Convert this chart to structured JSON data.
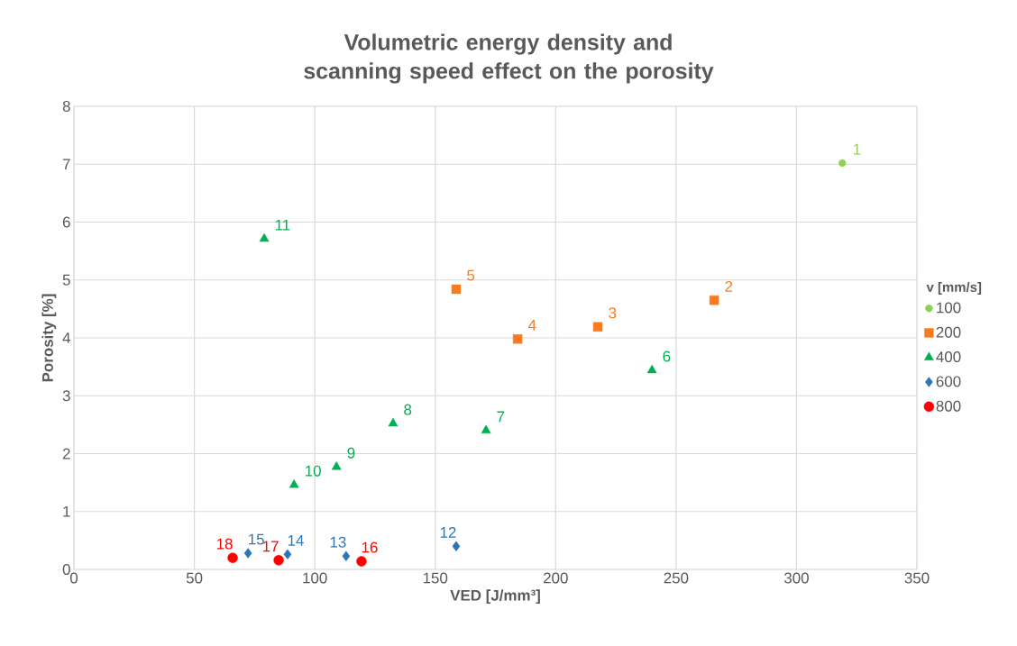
{
  "chart_data": {
    "type": "scatter",
    "title": "Volumetric energy density and scanning speed effect on the porosity",
    "xlabel": "VED [J/mm³]",
    "ylabel": "Porosity [%]",
    "legend_title": "v [mm/s]",
    "legend": "right",
    "grid": true,
    "xlim": [
      0,
      350
    ],
    "xticks": [
      0,
      50,
      100,
      150,
      200,
      250,
      300,
      350
    ],
    "ylim": [
      0,
      8
    ],
    "yticks": [
      0,
      1,
      2,
      3,
      4,
      5,
      6,
      7,
      8
    ],
    "series": [
      {
        "name": "100",
        "color": "#92d050",
        "marker": "circle",
        "x": [
          319
        ],
        "values": [
          7.02
        ]
      },
      {
        "name": "200",
        "color": "#f97a1f",
        "marker": "square",
        "x": [
          265.8,
          217.5,
          184.2,
          158.7
        ],
        "values": [
          4.65,
          4.19,
          3.98,
          4.84
        ]
      },
      {
        "name": "400",
        "color": "#00b050",
        "marker": "triangle",
        "x": [
          240,
          171.1,
          132.5,
          109,
          91.4,
          79
        ],
        "values": [
          3.44,
          2.4,
          2.52,
          1.77,
          1.46,
          5.71
        ]
      },
      {
        "name": "600",
        "color": "#2e75b6",
        "marker": "diamond",
        "x": [
          158.7,
          113,
          88.7,
          72.3
        ],
        "values": [
          0.4,
          0.23,
          0.26,
          0.28
        ]
      },
      {
        "name": "800",
        "color": "#ff0000",
        "marker": "circle",
        "x": [
          119.4,
          85,
          65.9
        ],
        "values": [
          0.14,
          0.16,
          0.2
        ]
      }
    ],
    "annotations": [
      {
        "text": "1",
        "x": 319,
        "y": 7.02
      },
      {
        "text": "2",
        "x": 265.8,
        "y": 4.65
      },
      {
        "text": "3",
        "x": 217.5,
        "y": 4.19
      },
      {
        "text": "4",
        "x": 184.2,
        "y": 3.98
      },
      {
        "text": "5",
        "x": 158.7,
        "y": 4.84
      },
      {
        "text": "6",
        "x": 240,
        "y": 3.44
      },
      {
        "text": "7",
        "x": 171.1,
        "y": 2.4
      },
      {
        "text": "8",
        "x": 132.5,
        "y": 2.52
      },
      {
        "text": "9",
        "x": 109,
        "y": 1.77
      },
      {
        "text": "10",
        "x": 91.4,
        "y": 1.46
      },
      {
        "text": "11",
        "x": 79,
        "y": 5.71
      },
      {
        "text": "12",
        "x": 158.7,
        "y": 0.4
      },
      {
        "text": "13",
        "x": 113,
        "y": 0.23
      },
      {
        "text": "14",
        "x": 88.7,
        "y": 0.26
      },
      {
        "text": "15",
        "x": 72.3,
        "y": 0.28
      },
      {
        "text": "16",
        "x": 119.4,
        "y": 0.14
      },
      {
        "text": "17",
        "x": 85,
        "y": 0.16
      },
      {
        "text": "18",
        "x": 65.9,
        "y": 0.2
      }
    ]
  }
}
